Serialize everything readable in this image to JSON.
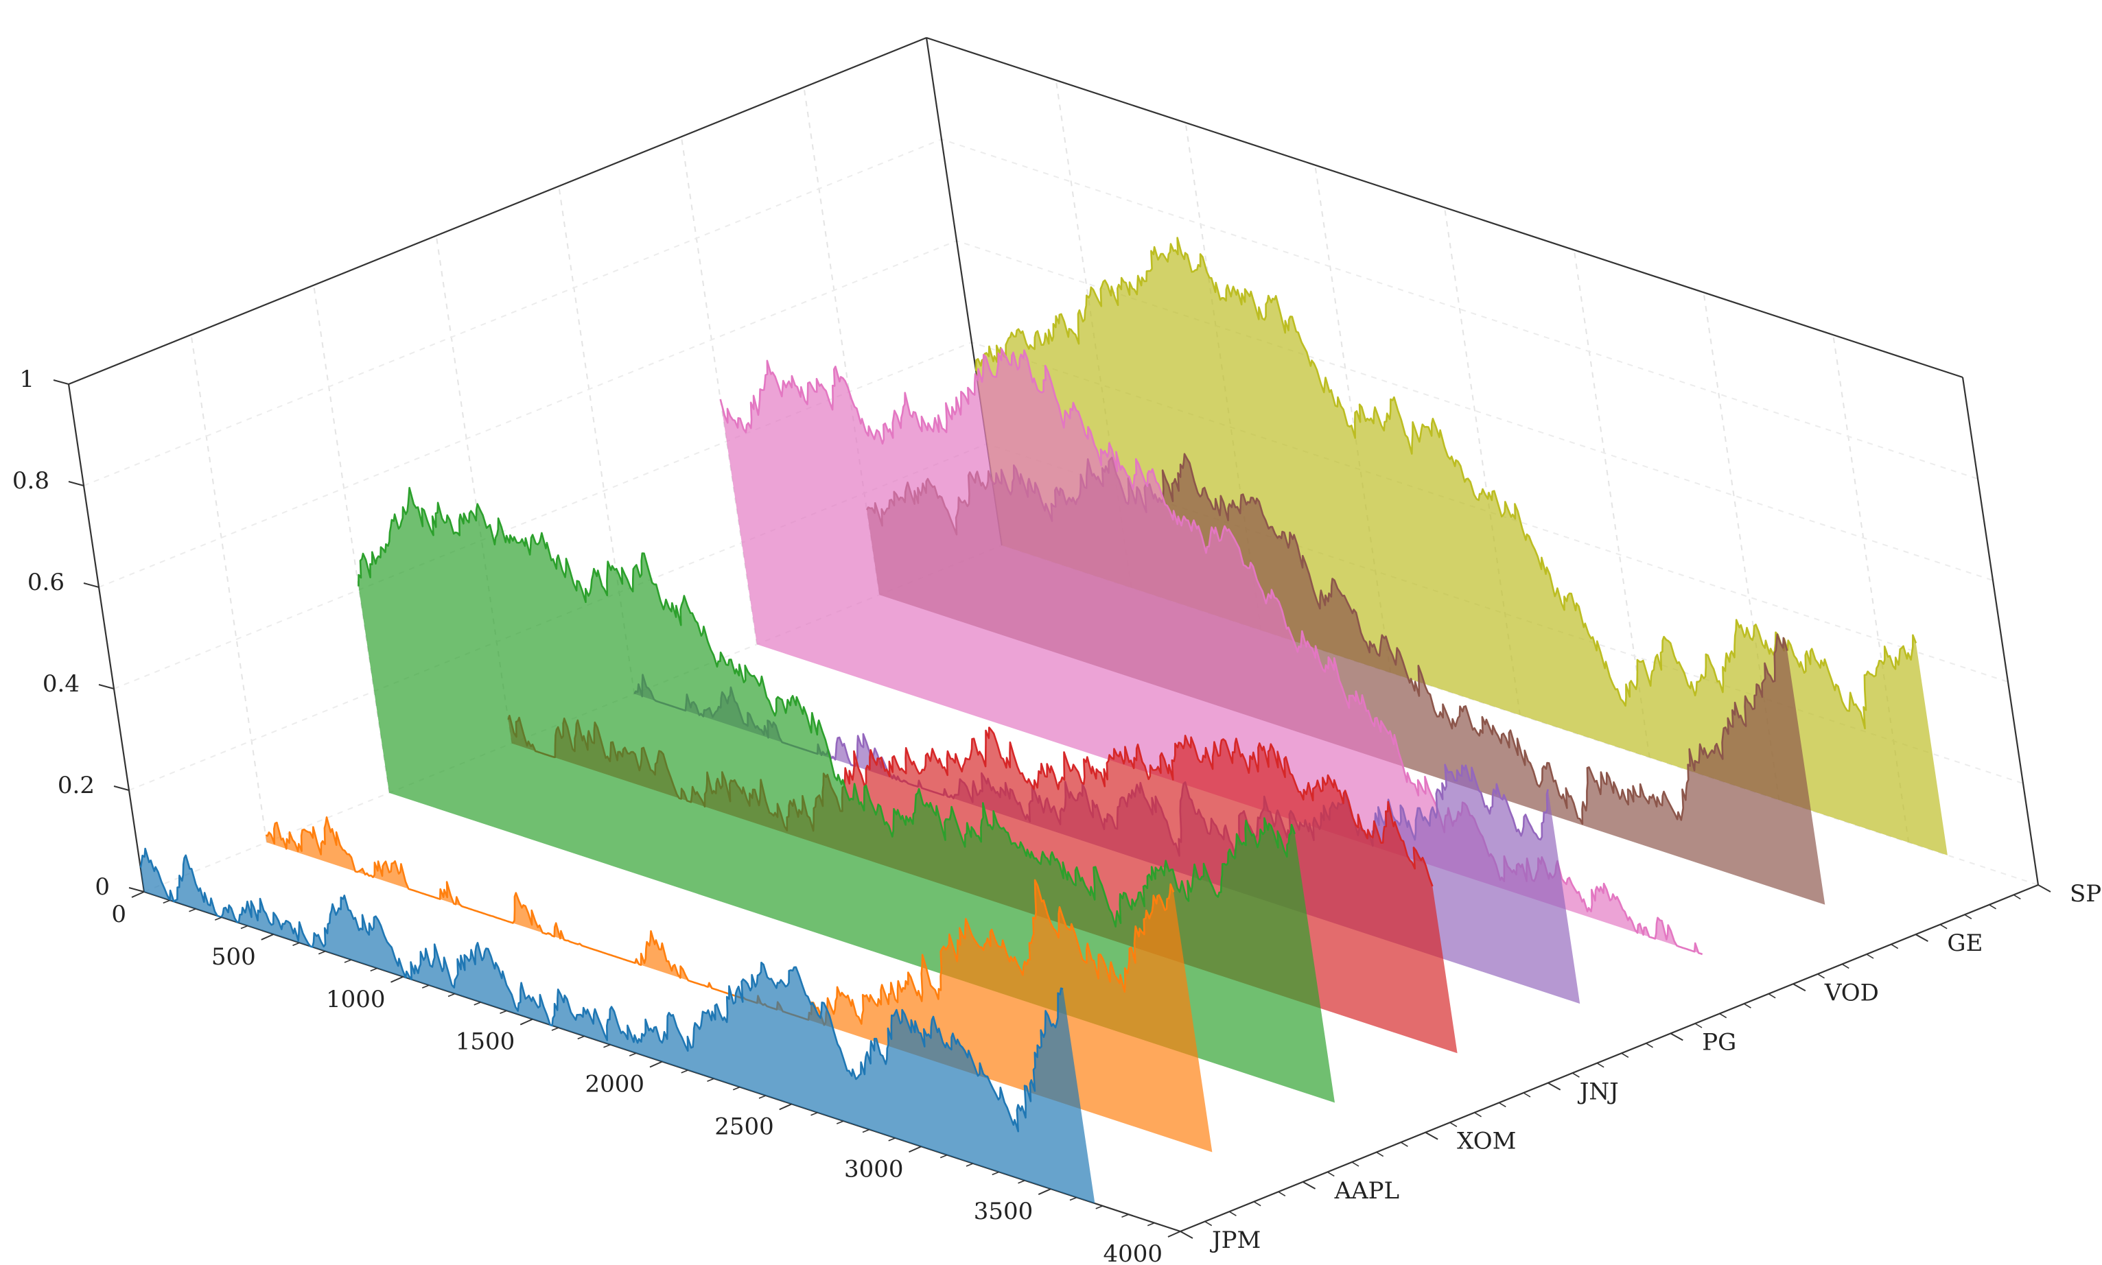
{
  "chart_data": {
    "type": "area",
    "title": "",
    "xlabel": "",
    "ylabel": "",
    "zlabel": "",
    "x_ticks": [
      0,
      500,
      1000,
      1500,
      2000,
      2500,
      3000,
      3500,
      4000
    ],
    "x_range": [
      0,
      4000
    ],
    "z_ticks": [
      0,
      0.2,
      0.4,
      0.6,
      0.8,
      1
    ],
    "z_tick_labels": [
      "0",
      "0.2",
      "0.4",
      "0.6",
      "0.8",
      "1"
    ],
    "z_range": [
      0,
      1
    ],
    "categories": [
      "JPM",
      "AAPL",
      "XOM",
      "JNJ",
      "PG",
      "VOD",
      "GE",
      "SPG"
    ],
    "grid": true,
    "series": [
      {
        "name": "JPM",
        "color": "#1f77b4",
        "x_end": 3670,
        "x": [
          0,
          500,
          1000,
          1500,
          1800,
          2000,
          2200,
          2400,
          2600,
          2800,
          3000,
          3200,
          3400,
          3600,
          3670
        ],
        "values": [
          0.06,
          0.04,
          0.05,
          0.04,
          0.06,
          0.04,
          0.09,
          0.22,
          0.27,
          0.08,
          0.25,
          0.26,
          0.11,
          0.36,
          0.41
        ]
      },
      {
        "name": "AAPL",
        "color": "#ff7f0e",
        "x_end": 3650,
        "x": [
          0,
          500,
          1000,
          1500,
          2000,
          2200,
          2400,
          2600,
          2800,
          3000,
          3100,
          3300,
          3400,
          3500,
          3650
        ],
        "values": [
          0.02,
          0.0,
          0.0,
          0.0,
          0.0,
          0.02,
          0.1,
          0.16,
          0.3,
          0.32,
          0.44,
          0.32,
          0.29,
          0.4,
          0.52
        ]
      },
      {
        "name": "XOM",
        "color": "#2ca02c",
        "x_end": 3650,
        "x": [
          0,
          300,
          600,
          900,
          1200,
          1500,
          1800,
          2000,
          2300,
          2600,
          2900,
          3200,
          3400,
          3650
        ],
        "values": [
          0.42,
          0.6,
          0.62,
          0.58,
          0.64,
          0.48,
          0.4,
          0.28,
          0.3,
          0.36,
          0.3,
          0.36,
          0.46,
          0.52
        ]
      },
      {
        "name": "JNJ",
        "color": "#d62728",
        "x_end": 3650,
        "x": [
          0,
          400,
          800,
          1200,
          1500,
          1800,
          2100,
          2400,
          2700,
          3000,
          3300,
          3500,
          3650
        ],
        "values": [
          0.04,
          0.04,
          0.05,
          0.06,
          0.2,
          0.3,
          0.32,
          0.36,
          0.42,
          0.46,
          0.48,
          0.43,
          0.36
        ]
      },
      {
        "name": "PG",
        "color": "#9467bd",
        "x_end": 3650,
        "x": [
          0,
          600,
          1200,
          1600,
          2000,
          2400,
          2700,
          3000,
          3300,
          3500,
          3650
        ],
        "values": [
          0.0,
          0.02,
          0.03,
          0.06,
          0.1,
          0.14,
          0.18,
          0.26,
          0.4,
          0.36,
          0.42
        ]
      },
      {
        "name": "VOD",
        "color": "#e377c2",
        "x_end": 3650,
        "x": [
          0,
          300,
          600,
          900,
          1200,
          1500,
          1800,
          2100,
          2400,
          2700,
          3000,
          3300,
          3500,
          3650
        ],
        "values": [
          0.46,
          0.58,
          0.56,
          0.6,
          0.78,
          0.62,
          0.58,
          0.4,
          0.28,
          0.1,
          0.04,
          0.03,
          0.02,
          0.02
        ]
      },
      {
        "name": "GE",
        "color": "#8c564b",
        "x_end": 3650,
        "x": [
          0,
          300,
          600,
          900,
          1200,
          1500,
          1800,
          2100,
          2400,
          2700,
          3000,
          3300,
          3500,
          3650
        ],
        "values": [
          0.16,
          0.26,
          0.3,
          0.36,
          0.44,
          0.42,
          0.3,
          0.2,
          0.12,
          0.06,
          0.1,
          0.24,
          0.4,
          0.52
        ]
      },
      {
        "name": "SPG",
        "color": "#bcbd22",
        "x_end": 3650,
        "x": [
          0,
          300,
          600,
          900,
          1200,
          1500,
          1800,
          2100,
          2400,
          2700,
          3000,
          3300,
          3500,
          3650
        ],
        "values": [
          0.34,
          0.46,
          0.62,
          0.72,
          0.66,
          0.54,
          0.5,
          0.4,
          0.1,
          0.2,
          0.36,
          0.28,
          0.3,
          0.44
        ]
      }
    ]
  }
}
